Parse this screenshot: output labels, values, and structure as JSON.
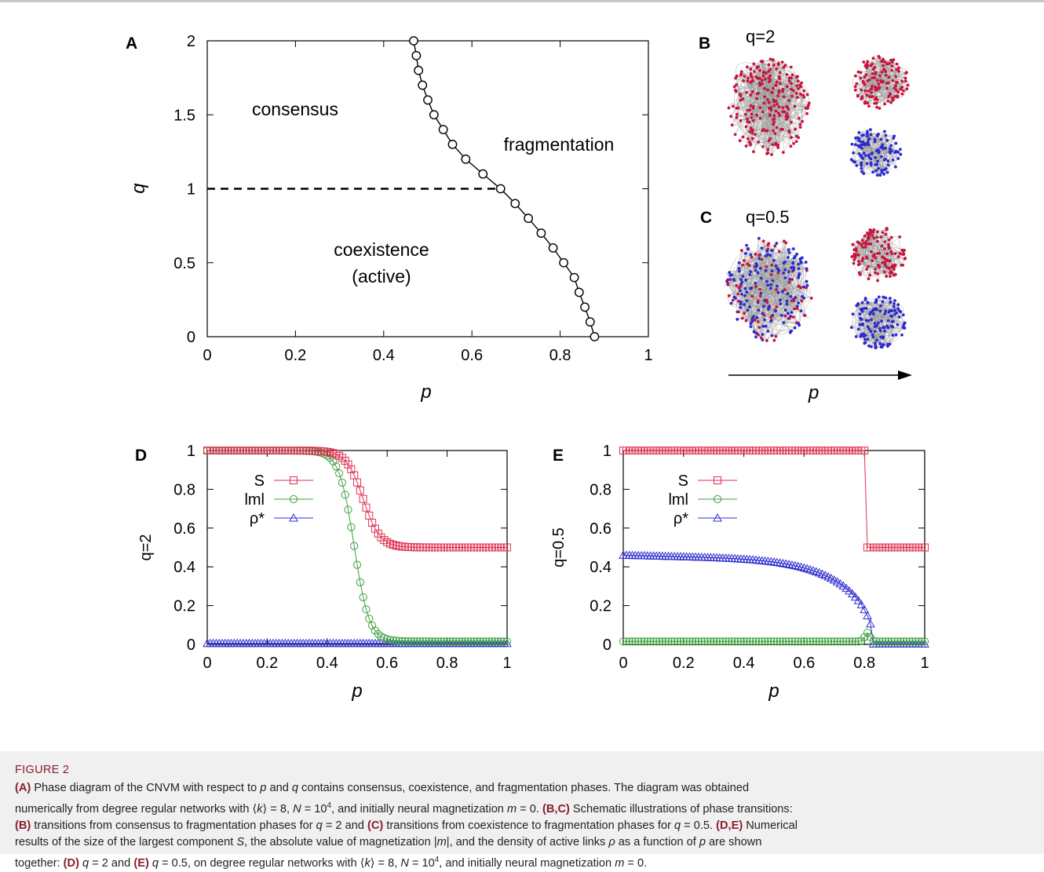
{
  "chart_data": [
    {
      "panel": "A",
      "type": "line",
      "xlabel": "p",
      "ylabel": "q",
      "xlim": [
        0,
        1
      ],
      "ylim": [
        0,
        2
      ],
      "x_ticks": [
        "0",
        "0.2",
        "0.4",
        "0.6",
        "0.8",
        "1"
      ],
      "y_ticks": [
        "0",
        "0.5",
        "1",
        "1.5",
        "2"
      ],
      "series": [
        {
          "values": [
            {
              "x": 0.878,
              "y": 0.0
            },
            {
              "x": 0.868,
              "y": 0.1
            },
            {
              "x": 0.856,
              "y": 0.2
            },
            {
              "x": 0.843,
              "y": 0.3
            },
            {
              "x": 0.832,
              "y": 0.4
            },
            {
              "x": 0.808,
              "y": 0.5
            },
            {
              "x": 0.784,
              "y": 0.6
            },
            {
              "x": 0.757,
              "y": 0.7
            },
            {
              "x": 0.728,
              "y": 0.8
            },
            {
              "x": 0.698,
              "y": 0.9
            },
            {
              "x": 0.665,
              "y": 1.0
            },
            {
              "x": 0.625,
              "y": 1.1
            },
            {
              "x": 0.586,
              "y": 1.2
            },
            {
              "x": 0.556,
              "y": 1.3
            },
            {
              "x": 0.535,
              "y": 1.4
            },
            {
              "x": 0.514,
              "y": 1.5
            },
            {
              "x": 0.5,
              "y": 1.6
            },
            {
              "x": 0.488,
              "y": 1.7
            },
            {
              "x": 0.479,
              "y": 1.8
            },
            {
              "x": 0.474,
              "y": 1.9
            },
            {
              "x": 0.468,
              "y": 2.0
            }
          ]
        }
      ],
      "dashed_line": {
        "y": 1,
        "x_from": 0,
        "x_to": 0.665
      },
      "region_labels": [
        "consensus",
        "fragmentation",
        "coexistence",
        "(active)"
      ],
      "marker": "open-circle"
    },
    {
      "panel": "D",
      "type": "line",
      "xlabel": "p",
      "ylabel": "q=2",
      "xlim": [
        0,
        1
      ],
      "ylim": [
        0,
        1
      ],
      "x_ticks": [
        "0",
        "0.2",
        "0.4",
        "0.6",
        "0.8",
        "1"
      ],
      "y_ticks": [
        "0",
        "0.2",
        "0.4",
        "0.6",
        "0.8",
        "1"
      ],
      "legend": "top-center",
      "series": [
        {
          "name": "S",
          "color": "#e03050",
          "marker": "square",
          "model": "sigmoid",
          "high": 1.0,
          "low": 0.5,
          "center": 0.52,
          "width": 0.028
        },
        {
          "name": "lml",
          "color": "#3fa03f",
          "marker": "circle",
          "model": "sigmoid",
          "high": 1.0,
          "low": 0.015,
          "center": 0.49,
          "width": 0.025
        },
        {
          "name": "ρ*",
          "color": "#3030d0",
          "marker": "triangle",
          "model": "flat",
          "value": 0.005
        }
      ]
    },
    {
      "panel": "E",
      "type": "line",
      "xlabel": "p",
      "ylabel": "q=0.5",
      "xlim": [
        0,
        1
      ],
      "ylim": [
        0,
        1
      ],
      "x_ticks": [
        "0",
        "0.2",
        "0.4",
        "0.6",
        "0.8",
        "1"
      ],
      "y_ticks": [
        "0",
        "0.2",
        "0.4",
        "0.6",
        "0.8",
        "1"
      ],
      "legend": "top-center",
      "series": [
        {
          "name": "S",
          "color": "#e03050",
          "marker": "square",
          "model": "step",
          "high": 1.0,
          "low": 0.5,
          "at": 0.805
        },
        {
          "name": "lml",
          "color": "#3fa03f",
          "marker": "circle",
          "model": "flat-bump",
          "value": 0.015,
          "peak_x": 0.81,
          "peak": 0.06
        },
        {
          "name": "ρ*",
          "color": "#3030d0",
          "marker": "triangle",
          "model": "decay",
          "start": 0.46,
          "end_x": 0.83
        }
      ]
    }
  ],
  "panels": {
    "A": {
      "letter": "A"
    },
    "B": {
      "letter": "B",
      "title": "q=2"
    },
    "C": {
      "letter": "C",
      "title": "q=0.5"
    },
    "D": {
      "letter": "D"
    },
    "E": {
      "letter": "E"
    },
    "arrow_label": "p"
  },
  "networks": {
    "red": "#c8143c",
    "blue": "#2a2ad0",
    "edge": "#9a9a9a"
  },
  "caption": {
    "heading": "FIGURE 2",
    "l1_a": "(A)",
    "l1_b": " Phase diagram of the CNVM with respect to ",
    "l1_p": "p",
    "l1_c": " and ",
    "l1_q": "q",
    "l1_d": " contains consensus, coexistence, and fragmentation phases. The diagram was obtained",
    "l2_a": "numerically from degree regular networks with ⟨",
    "l2_k": "k",
    "l2_b": "⟩ = 8, ",
    "l2_N": "N",
    "l2_c": " = 10",
    "l2_sup": "4",
    "l2_d": ", and initially neural magnetization ",
    "l2_m": "m",
    "l2_e": " = 0. ",
    "l2_bc": "(B,C)",
    "l2_f": " Schematic illustrations of phase transitions:",
    "l3_b": "(B)",
    "l3_a": " transitions from consensus to fragmentation phases for ",
    "l3_q": "q",
    "l3_c": " = 2 and ",
    "l3_cc": "(C)",
    "l3_d": " transitions from coexistence to fragmentation phases for ",
    "l3_q2": "q",
    "l3_e": " = 0.5. ",
    "l3_de": "(D,E)",
    "l3_f": " Numerical",
    "l4_a": "results of the size of the largest component ",
    "l4_S": "S",
    "l4_b": ", the absolute value of magnetization |",
    "l4_m": "m",
    "l4_c": "|, and the density of active links ",
    "l4_rho": "ρ",
    "l4_d": " as a function of ",
    "l4_p": "p",
    "l4_e": " are shown",
    "l5_a": "together: ",
    "l5_D": "(D)",
    "l5_q": "q",
    "l5_b": " = 2 and ",
    "l5_E": "(E)",
    "l5_q2": "q",
    "l5_c": " = 0.5, on degree regular networks with ⟨",
    "l5_k": "k",
    "l5_d": "⟩ = 8, ",
    "l5_N": "N",
    "l5_e": " = 10",
    "l5_sup": "4",
    "l5_f": ", and initially neural magnetization ",
    "l5_m": "m",
    "l5_g": " = 0."
  }
}
